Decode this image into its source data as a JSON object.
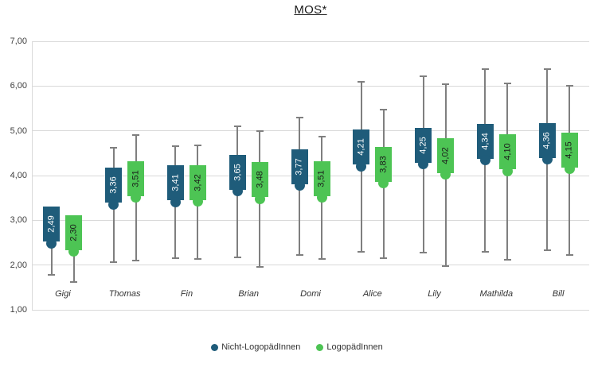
{
  "chart_data": {
    "type": "scatter",
    "title": "MOS*",
    "subtitle": "",
    "categories": [
      "Gigi",
      "Thomas",
      "Fin",
      "Brian",
      "Domi",
      "Alice",
      "Lily",
      "Mathilda",
      "Bill"
    ],
    "series": [
      {
        "name": "Nicht-LogopädInnen",
        "color": "#1F5C7A",
        "label_text_color": "#FFFFFF",
        "values": [
          2.49,
          3.36,
          3.41,
          3.65,
          3.77,
          4.21,
          4.25,
          4.34,
          4.36
        ],
        "value_labels": [
          "2,49",
          "3,36",
          "3,41",
          "3,65",
          "3,77",
          "4,21",
          "4,25",
          "4,34",
          "4,36"
        ],
        "error_low": [
          1.78,
          2.07,
          2.16,
          2.18,
          2.23,
          2.29,
          2.28,
          2.29,
          2.34
        ],
        "error_high": [
          3.2,
          4.62,
          4.66,
          5.1,
          5.3,
          6.1,
          6.22,
          6.38,
          6.38
        ]
      },
      {
        "name": "LogopädInnen",
        "color": "#4DC454",
        "label_text_color": "#1A1A1A",
        "values": [
          2.3,
          3.51,
          3.42,
          3.48,
          3.51,
          3.83,
          4.02,
          4.1,
          4.15
        ],
        "value_labels": [
          "2,30",
          "3,51",
          "3,42",
          "3,48",
          "3,51",
          "3,83",
          "4,02",
          "4,10",
          "4,15"
        ],
        "error_low": [
          1.62,
          2.1,
          2.13,
          1.95,
          2.14,
          2.16,
          1.98,
          2.11,
          2.22
        ],
        "error_high": [
          2.98,
          4.9,
          4.68,
          5.0,
          4.87,
          5.48,
          6.05,
          6.06,
          6.0
        ]
      }
    ],
    "xlabel": "",
    "ylabel": "",
    "ylim": [
      1,
      7
    ],
    "yticks": [
      {
        "value": 7,
        "label": "7,00"
      },
      {
        "value": 6,
        "label": "6,00"
      },
      {
        "value": 5,
        "label": "5,00"
      },
      {
        "value": 4,
        "label": "4,00"
      },
      {
        "value": 3,
        "label": "3,00"
      },
      {
        "value": 2,
        "label": "2,00"
      },
      {
        "value": 1,
        "label": "1,00"
      }
    ],
    "grid": true,
    "legend_position": "bottom",
    "colors": {
      "grid": "#D9D9D9",
      "whisker": "#7F7F7F",
      "axis_text": "#404040",
      "background": "#FFFFFF"
    }
  }
}
